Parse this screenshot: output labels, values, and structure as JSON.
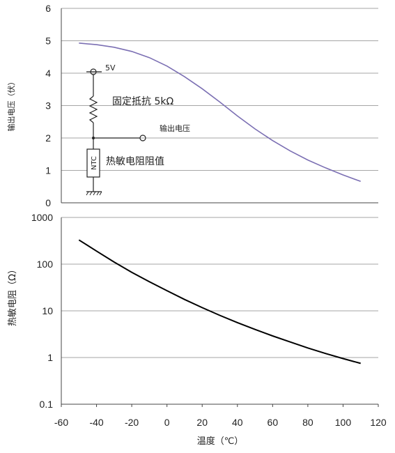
{
  "chart_data": [
    {
      "type": "line",
      "ylabel": "输出电压（伏）",
      "ylim": [
        0,
        6
      ],
      "yticks": [
        "0",
        "1",
        "2",
        "3",
        "4",
        "5",
        "6"
      ],
      "xlim": [
        -60,
        120
      ],
      "grid": true,
      "series": [
        {
          "color": "#7b6fb3",
          "x": [
            -50,
            -40,
            -30,
            -20,
            -10,
            0,
            10,
            20,
            30,
            40,
            50,
            60,
            70,
            80,
            90,
            100,
            110
          ],
          "y": [
            4.93,
            4.88,
            4.8,
            4.67,
            4.48,
            4.22,
            3.89,
            3.52,
            3.11,
            2.68,
            2.28,
            1.92,
            1.6,
            1.32,
            1.08,
            0.86,
            0.66
          ]
        }
      ],
      "circuit": {
        "supply": "5V",
        "resistor": "固定抵抗 5kΩ",
        "output": "输出电压",
        "ntc_label": "NTC",
        "ntc_desc": "热敏电阻阻值"
      }
    },
    {
      "type": "line",
      "ylabel": "热敏电阻（Ω）",
      "xlabel": "温度（℃）",
      "yscale": "log",
      "ylim": [
        0.1,
        1000
      ],
      "yticks": [
        "0.1",
        "1",
        "10",
        "100",
        "1000"
      ],
      "xlim": [
        -60,
        120
      ],
      "xticks": [
        "-60",
        "-40",
        "-20",
        "0",
        "20",
        "40",
        "60",
        "80",
        "100",
        "120"
      ],
      "grid": true,
      "series": [
        {
          "color": "#000000",
          "x": [
            -50,
            -40,
            -30,
            -20,
            -10,
            0,
            10,
            20,
            30,
            40,
            50,
            60,
            70,
            80,
            90,
            100,
            110
          ],
          "y": [
            330,
            190,
            111,
            67,
            42,
            27,
            17.5,
            11.7,
            8.0,
            5.6,
            4.0,
            2.9,
            2.15,
            1.6,
            1.22,
            0.95,
            0.75
          ]
        }
      ]
    }
  ]
}
